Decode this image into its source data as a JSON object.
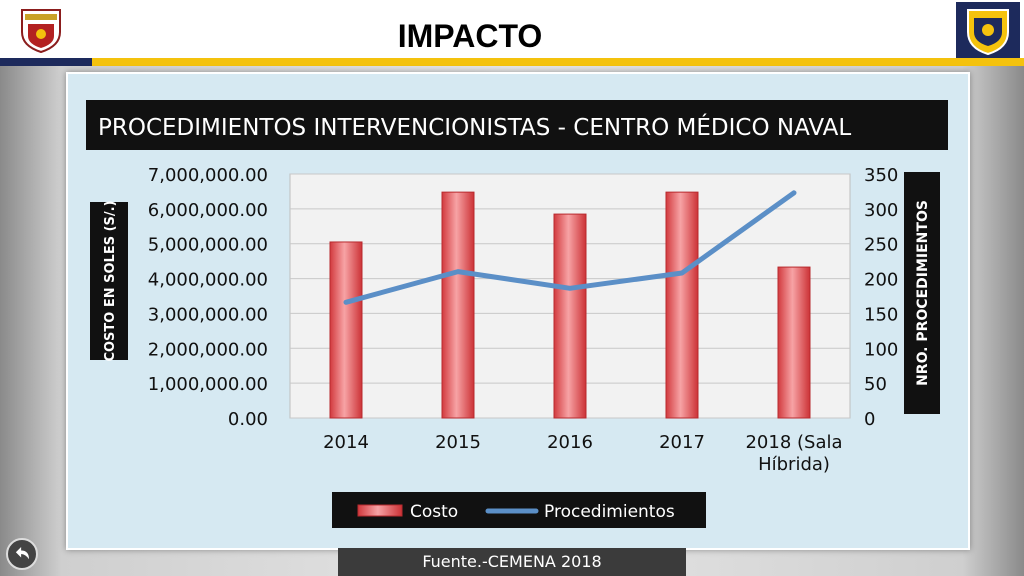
{
  "slide": {
    "title": "IMPACTO",
    "source": "Fuente.-CEMENA 2018",
    "icons": {
      "left_logo": "naval-school-crest-icon",
      "right_logo": "naval-shield-crest-icon",
      "back": "back-arrow-icon"
    },
    "colors": {
      "band": "#f4c20d",
      "band_dark": "#1d2a5c"
    }
  },
  "chart_data": {
    "type": "bar",
    "title": "PROCEDIMIENTOS INTERVENCIONISTAS - CENTRO MÉDICO NAVAL",
    "categories": [
      "2014",
      "2015",
      "2016",
      "2017",
      "2018 (Sala Híbrida)"
    ],
    "series": [
      {
        "name": "Costo",
        "type": "bar",
        "axis": "left",
        "color": "#e0484c",
        "values": [
          5050000,
          6480000,
          5850000,
          6480000,
          4330000
        ]
      },
      {
        "name": "Procedimientos",
        "type": "line",
        "axis": "right",
        "color": "#5b8fc7",
        "values": [
          166,
          210,
          186,
          208,
          323
        ]
      }
    ],
    "ylabel": "COSTO EN SOLES (S/.)",
    "y2label": "NRO. PROCEDIMIENTOS",
    "ylim": [
      0,
      7000000
    ],
    "y2lim": [
      0,
      350
    ],
    "yticks": [
      "0.00",
      "1,000,000.00",
      "2,000,000.00",
      "3,000,000.00",
      "4,000,000.00",
      "5,000,000.00",
      "6,000,000.00",
      "7,000,000.00"
    ],
    "y2ticks": [
      "0",
      "50",
      "100",
      "150",
      "200",
      "250",
      "300",
      "350"
    ],
    "grid": true,
    "legend": "bottom"
  }
}
